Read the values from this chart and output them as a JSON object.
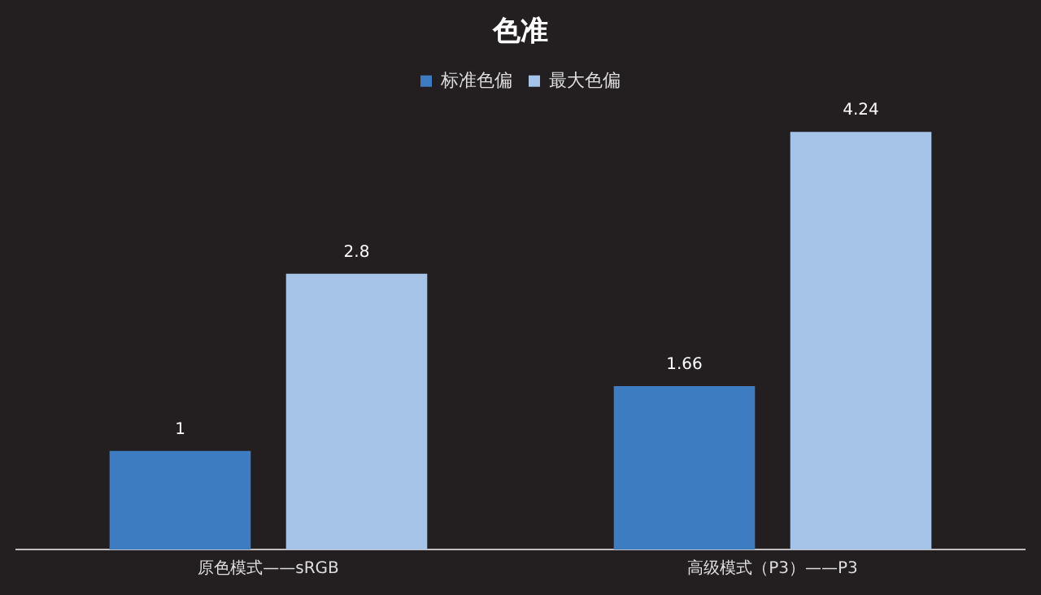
{
  "chart_data": {
    "type": "bar",
    "title": "色准",
    "categories": [
      "原色模式——sRGB",
      "高级模式（P3）——P3"
    ],
    "series": [
      {
        "name": "标准色偏",
        "color": "#3d7cc0",
        "values": [
          1,
          1.66
        ]
      },
      {
        "name": "最大色偏",
        "color": "#a6c3e8",
        "values": [
          2.8,
          4.24
        ]
      }
    ],
    "data_labels": true,
    "legend": "top",
    "grid": false,
    "tick_labels": "x"
  }
}
